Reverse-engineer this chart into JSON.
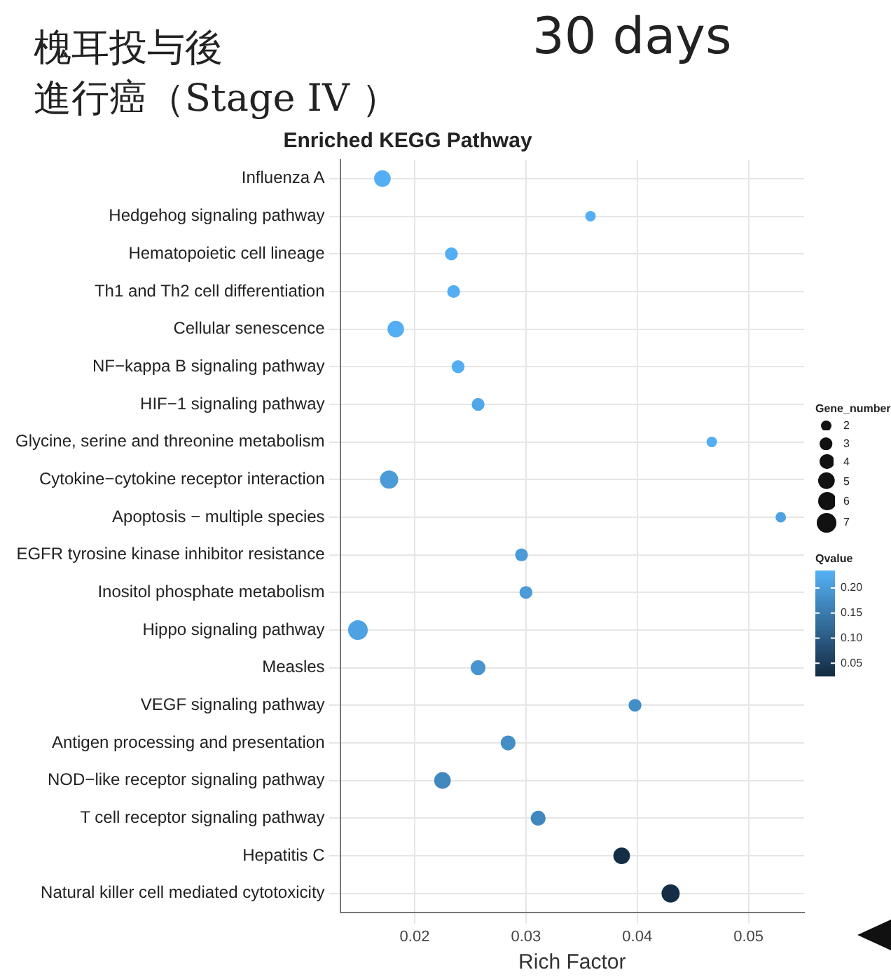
{
  "chart_data": {
    "type": "bubble",
    "title": "Enriched KEGG Pathway",
    "xlabel": "Rich Factor",
    "legend_title": "Gene_number",
    "clabel": "Qvalue",
    "annotations": [
      "槐耳投与後",
      "進行癌（Stage IV ）",
      "30 days"
    ],
    "orientation": "horizontal",
    "categories": [
      "Influenza A",
      "Hedgehog signaling pathway",
      "Hematopoietic cell lineage",
      "Th1 and Th2 cell differentiation",
      "Cellular senescence",
      "NF−kappa B signaling pathway",
      "HIF−1 signaling pathway",
      "Glycine, serine and threonine metabolism",
      "Cytokine−cytokine receptor interaction",
      "Apoptosis − multiple species",
      "EGFR tyrosine kinase inhibitor resistance",
      "Inositol phosphate metabolism",
      "Hippo signaling pathway",
      "Measles",
      "VEGF signaling pathway",
      "Antigen processing and presentation",
      "NOD−like receptor signaling pathway",
      "T cell receptor signaling pathway",
      "Hepatitis C",
      "Natural killer cell mediated cytotoxicity"
    ],
    "values": [
      0.0171,
      0.0358,
      0.0233,
      0.0235,
      0.0183,
      0.0239,
      0.0257,
      0.0467,
      0.0177,
      0.0529,
      0.0296,
      0.03,
      0.0149,
      0.0257,
      0.0398,
      0.0284,
      0.0225,
      0.0311,
      0.0386,
      0.043
    ],
    "sizes": [
      5,
      2,
      3,
      3,
      5,
      3,
      3,
      2,
      6,
      2,
      3,
      3,
      7,
      4,
      3,
      4,
      5,
      4,
      5,
      6
    ],
    "size_legend": [
      2,
      3,
      4,
      5,
      6,
      7
    ],
    "cvalues": [
      0.23,
      0.23,
      0.23,
      0.23,
      0.23,
      0.23,
      0.22,
      0.23,
      0.2,
      0.21,
      0.2,
      0.2,
      0.21,
      0.19,
      0.18,
      0.18,
      0.17,
      0.17,
      0.03,
      0.03
    ],
    "clim": [
      0.025,
      0.235
    ],
    "cticks": [
      0.05,
      {
        "value": 0.1,
        "label": "0.10"
      },
      0.15,
      {
        "value": 0.2,
        "label": "0.20"
      }
    ],
    "xlim": [
      0.0133,
      0.055
    ],
    "xticks": [
      0.02,
      0.03,
      0.04,
      0.05
    ],
    "grid": true,
    "marker": "circle"
  }
}
